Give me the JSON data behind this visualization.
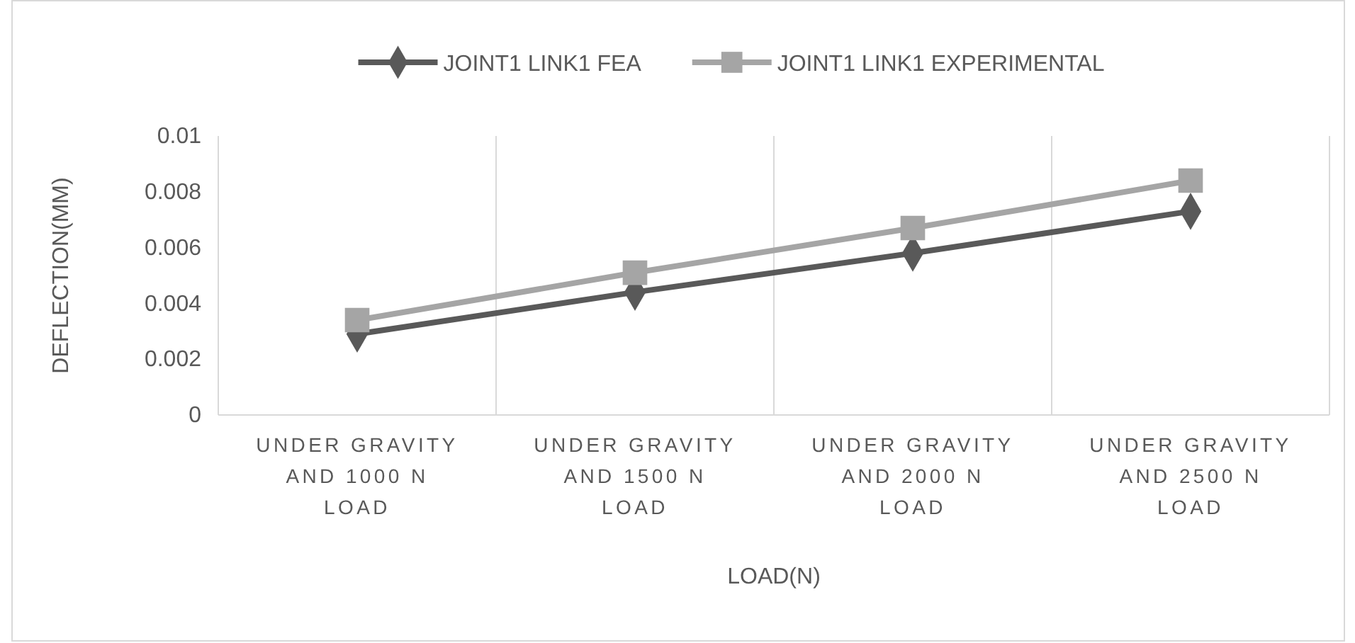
{
  "chart_data": {
    "type": "line",
    "xlabel": "LOAD(N)",
    "ylabel": "DEFLECTION(MM)",
    "categories": [
      "UNDER GRAVITY AND 1000 N LOAD",
      "UNDER GRAVITY AND 1500 N LOAD",
      "UNDER GRAVITY AND 2000 N LOAD",
      "UNDER GRAVITY AND 2500 N LOAD"
    ],
    "series": [
      {
        "name": "JOINT1 LINK1 FEA",
        "color": "#595959",
        "values": [
          0.0029,
          0.0044,
          0.0058,
          0.0073
        ],
        "marker": "diamond"
      },
      {
        "name": "JOINT1 LINK1 EXPERIMENTAL",
        "color": "#a5a5a5",
        "values": [
          0.0034,
          0.0051,
          0.0067,
          0.0084
        ],
        "marker": "square"
      }
    ],
    "ylim": [
      0,
      0.01
    ],
    "yticks": [
      0,
      0.002,
      0.004,
      0.006,
      0.008,
      0.01
    ],
    "grid": "x",
    "legend": "top"
  }
}
